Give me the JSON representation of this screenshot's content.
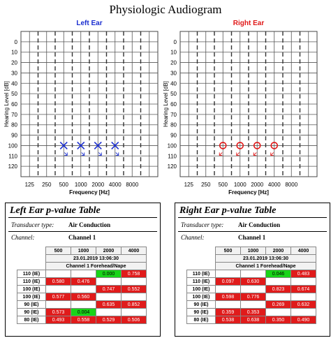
{
  "title": "Physiologic Audiogram",
  "colors": {
    "left": "#1a2ed0",
    "right": "#e01818",
    "red_cell": "#e01b1b",
    "green_cell": "#19d419"
  },
  "chart_data": [
    {
      "type": "scatter",
      "title": "Left Ear",
      "xlabel": "Frequency [Hz]",
      "ylabel": "Hearing Level [dB]",
      "x_scale": "log2",
      "x_ticks": [
        125,
        250,
        500,
        1000,
        2000,
        4000,
        8000
      ],
      "y_ticks": [
        0,
        10,
        20,
        30,
        40,
        50,
        60,
        70,
        80,
        90,
        100,
        110,
        120
      ],
      "ylim": [
        120,
        0
      ],
      "grid": true,
      "marker": "x",
      "points": [
        {
          "x": 500,
          "y": 100
        },
        {
          "x": 1000,
          "y": 100
        },
        {
          "x": 2000,
          "y": 100
        },
        {
          "x": 4000,
          "y": 100
        }
      ]
    },
    {
      "type": "scatter",
      "title": "Right Ear",
      "xlabel": "Frequency [Hz]",
      "ylabel": "Hearing Level [dB]",
      "x_scale": "log2",
      "x_ticks": [
        125,
        250,
        500,
        1000,
        2000,
        4000,
        8000
      ],
      "y_ticks": [
        0,
        10,
        20,
        30,
        40,
        50,
        60,
        70,
        80,
        90,
        100,
        110,
        120
      ],
      "ylim": [
        120,
        0
      ],
      "grid": true,
      "marker": "o",
      "points": [
        {
          "x": 500,
          "y": 100
        },
        {
          "x": 1000,
          "y": 100
        },
        {
          "x": 2000,
          "y": 100
        },
        {
          "x": 4000,
          "y": 100
        }
      ]
    },
    {
      "type": "table",
      "title": "Left Ear p-value Table",
      "transducer_label": "Transducer type:",
      "transducer": "Air Conduction",
      "channel_label": "Channel:",
      "channel": "Channel 1",
      "columns": [
        "500",
        "1000",
        "2000",
        "4000"
      ],
      "datetime": "23.01.2019 13:06:30",
      "group": "Channel 1 Forehead/Nape",
      "rows": [
        {
          "label": "110 (IE)",
          "cells": [
            {
              "v": "",
              "c": "blank"
            },
            {
              "v": "",
              "c": "blank"
            },
            {
              "v": "0.000",
              "c": "green"
            },
            {
              "v": "0.758",
              "c": "red"
            }
          ]
        },
        {
          "label": "110 (IE)",
          "cells": [
            {
              "v": "0.580",
              "c": "red"
            },
            {
              "v": "0.476",
              "c": "red"
            },
            {
              "v": "",
              "c": "blank"
            },
            {
              "v": "",
              "c": "blank"
            }
          ]
        },
        {
          "label": "100 (IE)",
          "cells": [
            {
              "v": "",
              "c": "blank"
            },
            {
              "v": "",
              "c": "blank"
            },
            {
              "v": "0.747",
              "c": "red"
            },
            {
              "v": "0.552",
              "c": "red"
            }
          ]
        },
        {
          "label": "100 (IE)",
          "cells": [
            {
              "v": "0.577",
              "c": "red"
            },
            {
              "v": "0.560",
              "c": "red"
            },
            {
              "v": "",
              "c": "blank"
            },
            {
              "v": "",
              "c": "blank"
            }
          ]
        },
        {
          "label": "90 (IE)",
          "cells": [
            {
              "v": "",
              "c": "blank"
            },
            {
              "v": "",
              "c": "blank"
            },
            {
              "v": "0.635",
              "c": "red"
            },
            {
              "v": "0.852",
              "c": "red"
            }
          ]
        },
        {
          "label": "90 (IE)",
          "cells": [
            {
              "v": "0.573",
              "c": "red"
            },
            {
              "v": "0.004",
              "c": "green"
            },
            {
              "v": "",
              "c": "blank"
            },
            {
              "v": "",
              "c": "blank"
            }
          ]
        },
        {
          "label": "80 (IE)",
          "cells": [
            {
              "v": "0.493",
              "c": "red"
            },
            {
              "v": "0.558",
              "c": "red"
            },
            {
              "v": "0.529",
              "c": "red"
            },
            {
              "v": "0.506",
              "c": "red"
            }
          ]
        }
      ]
    },
    {
      "type": "table",
      "title": "Right Ear p-value Table",
      "transducer_label": "Transducer type:",
      "transducer": "Air Conduction",
      "channel_label": "Channel:",
      "channel": "Channel 1",
      "columns": [
        "500",
        "1000",
        "2000",
        "4000"
      ],
      "datetime": "23.01.2019 13:06:30",
      "group": "Channel 1 Forehead/Nape",
      "rows": [
        {
          "label": "110 (IE)",
          "cells": [
            {
              "v": "",
              "c": "blank"
            },
            {
              "v": "",
              "c": "blank"
            },
            {
              "v": "0.046",
              "c": "green"
            },
            {
              "v": "0.483",
              "c": "red"
            }
          ]
        },
        {
          "label": "110 (IE)",
          "cells": [
            {
              "v": "0.097",
              "c": "red"
            },
            {
              "v": "0.630",
              "c": "red"
            },
            {
              "v": "",
              "c": "blank"
            },
            {
              "v": "",
              "c": "blank"
            }
          ]
        },
        {
          "label": "100 (IE)",
          "cells": [
            {
              "v": "",
              "c": "blank"
            },
            {
              "v": "",
              "c": "blank"
            },
            {
              "v": "0.823",
              "c": "red"
            },
            {
              "v": "0.674",
              "c": "red"
            }
          ]
        },
        {
          "label": "100 (IE)",
          "cells": [
            {
              "v": "0.598",
              "c": "red"
            },
            {
              "v": "0.776",
              "c": "red"
            },
            {
              "v": "",
              "c": "blank"
            },
            {
              "v": "",
              "c": "blank"
            }
          ]
        },
        {
          "label": "90 (IE)",
          "cells": [
            {
              "v": "",
              "c": "blank"
            },
            {
              "v": "",
              "c": "blank"
            },
            {
              "v": "0.269",
              "c": "red"
            },
            {
              "v": "0.632",
              "c": "red"
            }
          ]
        },
        {
          "label": "90 (IE)",
          "cells": [
            {
              "v": "0.359",
              "c": "red"
            },
            {
              "v": "0.353",
              "c": "red"
            },
            {
              "v": "",
              "c": "blank"
            },
            {
              "v": "",
              "c": "blank"
            }
          ]
        },
        {
          "label": "80 (IE)",
          "cells": [
            {
              "v": "0.538",
              "c": "red"
            },
            {
              "v": "0.638",
              "c": "red"
            },
            {
              "v": "0.350",
              "c": "red"
            },
            {
              "v": "0.490",
              "c": "red"
            }
          ]
        }
      ]
    }
  ]
}
